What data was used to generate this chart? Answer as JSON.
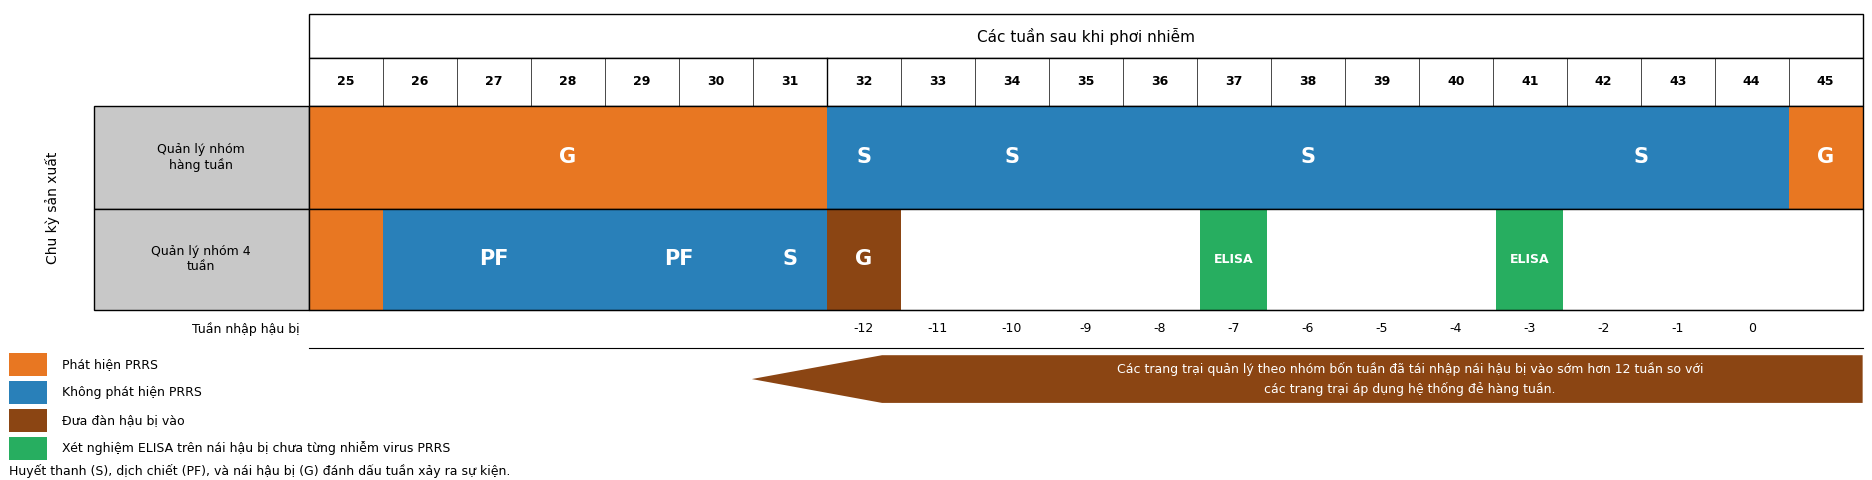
{
  "title_top": "Các tuần sau khi phơi nhiễm",
  "weeks": [
    25,
    26,
    27,
    28,
    29,
    30,
    31,
    32,
    33,
    34,
    35,
    36,
    37,
    38,
    39,
    40,
    41,
    42,
    43,
    44,
    45
  ],
  "row1_label": "Quản lý nhóm\nhàng tuần",
  "row2_label": "Quản lý nhóm 4\ntuần",
  "bottom_label": "Tuần nhập hậu bị",
  "color_orange": "#E87722",
  "color_blue": "#2980B9",
  "color_dark_orange": "#8B4513",
  "color_green": "#27AE60",
  "color_gray": "#C8C8C8",
  "legend_items": [
    {
      "color": "#E87722",
      "label": "Phát hiện PRRS"
    },
    {
      "color": "#2980B9",
      "label": "Không phát hiện PRRS"
    },
    {
      "color": "#8B4513",
      "label": "Đưa đàn hậu bị vào"
    },
    {
      "color": "#27AE60",
      "label": "Xét nghiệm ELISA trên nái hậu bị chưa từng nhiễm virus PRRS"
    }
  ],
  "footnote": "Huyết thanh (S), dịch chiết (PF), và nái hậu bị (G) đánh dấu tuần xảy ra sự kiện.",
  "arrow_text": "Các trang trại quản lý theo nhóm bốn tuần đã tái nhập nái hậu bị vào sớm hơn 12 tuần so với\ncác trang trại áp dụng hệ thống đẻ hàng tuần."
}
